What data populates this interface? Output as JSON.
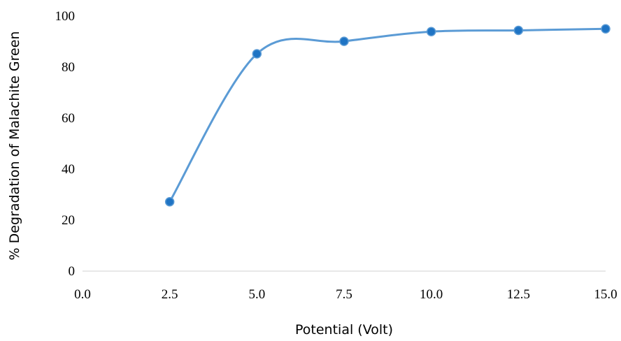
{
  "chart_data": {
    "type": "line",
    "smooth": true,
    "title": "",
    "xlabel": "Potential (Volt)",
    "ylabel": "% Degradation of Malachite Green",
    "x_ticks": [
      "0.0",
      "2.5",
      "5.0",
      "7.5",
      "10.0",
      "12.5",
      "15.0"
    ],
    "y_ticks": [
      "0",
      "20",
      "40",
      "60",
      "80",
      "100"
    ],
    "xlim": [
      0,
      15
    ],
    "ylim": [
      0,
      100
    ],
    "grid": false,
    "legend": "none",
    "series": [
      {
        "x": [
          2.5,
          5.0,
          7.5,
          10.0,
          12.5,
          15.0
        ],
        "y": [
          27.2,
          85.2,
          90.1,
          93.9,
          94.4,
          95.0
        ],
        "line_color": "#5b9bd5",
        "marker_color": "#1f74c4"
      }
    ]
  }
}
